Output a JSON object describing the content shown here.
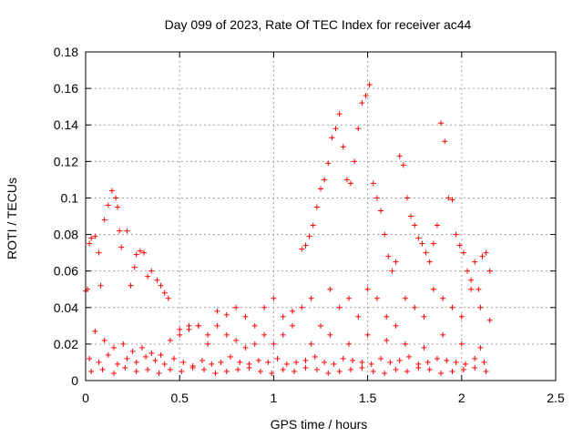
{
  "chart_data": {
    "type": "scatter",
    "title": "Day 099 of 2023, Rate Of TEC Index for receiver ac44",
    "xlabel": "GPS time / hours",
    "ylabel": "ROTI / TECUs",
    "xlim": [
      0,
      2.5
    ],
    "ylim": [
      0,
      0.18
    ],
    "xticks": [
      0,
      0.5,
      1,
      1.5,
      2,
      2.5
    ],
    "xtick_labels": [
      "0",
      "0.5",
      "1",
      "1.5",
      "2",
      "2.5"
    ],
    "yticks": [
      0,
      0.02,
      0.04,
      0.06,
      0.08,
      0.1,
      0.12,
      0.14,
      0.16,
      0.18
    ],
    "ytick_labels": [
      "0",
      "0.02",
      "0.04",
      "0.06",
      "0.08",
      "0.1",
      "0.12",
      "0.14",
      "0.16",
      "0.18"
    ],
    "grid": true,
    "marker": "+",
    "color": "#ff0000",
    "series": [
      {
        "x": [
          0.0,
          0.01,
          0.02,
          0.03,
          0.05,
          0.07,
          0.08,
          0.1,
          0.12,
          0.14,
          0.16,
          0.17,
          0.18,
          0.19,
          0.22,
          0.24,
          0.26,
          0.27,
          0.29,
          0.31,
          0.33,
          0.35,
          0.38,
          0.4,
          0.42,
          0.44,
          1.15,
          1.17,
          1.19,
          1.21,
          1.23,
          1.25,
          1.27,
          1.29,
          1.31,
          1.33,
          1.35,
          1.37,
          1.39,
          1.41,
          1.43,
          1.45,
          1.47,
          1.49,
          1.51,
          1.53,
          1.55,
          1.57,
          1.59,
          1.61,
          1.63,
          1.65,
          1.67,
          1.69,
          1.71,
          1.73,
          1.75,
          1.77,
          1.79,
          1.81,
          1.83,
          1.85,
          1.87,
          1.89,
          1.91,
          1.93,
          1.95,
          1.97,
          1.99,
          2.01,
          2.03,
          2.05,
          2.07,
          2.09,
          2.11,
          2.13,
          2.15,
          0.05,
          0.1,
          0.15,
          0.2,
          0.25,
          0.3,
          0.35,
          0.4,
          0.45,
          0.5,
          0.55,
          0.6,
          0.65,
          0.7,
          0.75,
          0.8,
          0.85,
          0.9,
          0.95,
          1.0,
          1.05,
          1.1,
          1.15,
          1.2,
          1.25,
          1.3,
          1.35,
          1.4,
          1.45,
          1.5,
          1.55,
          1.6,
          1.65,
          1.7,
          1.75,
          1.8,
          1.85,
          1.9,
          1.95,
          2.0,
          2.05,
          2.1,
          2.15,
          0.02,
          0.07,
          0.12,
          0.17,
          0.22,
          0.27,
          0.32,
          0.37,
          0.42,
          0.47,
          0.52,
          0.57,
          0.62,
          0.67,
          0.72,
          0.77,
          0.82,
          0.87,
          0.92,
          0.97,
          1.02,
          1.07,
          1.12,
          1.17,
          1.22,
          1.27,
          1.32,
          1.37,
          1.42,
          1.47,
          1.52,
          1.57,
          1.62,
          1.67,
          1.72,
          1.77,
          1.82,
          1.87,
          1.92,
          1.97,
          2.02,
          2.07,
          2.12,
          0.03,
          0.09,
          0.15,
          0.21,
          0.27,
          0.33,
          0.39,
          0.45,
          0.51,
          0.57,
          0.63,
          0.69,
          0.75,
          0.81,
          0.87,
          0.93,
          0.99,
          1.05,
          1.11,
          1.17,
          1.23,
          1.29,
          1.35,
          1.41,
          1.47,
          1.53,
          1.59,
          1.65,
          1.71,
          1.77,
          1.83,
          1.89,
          1.95,
          2.01,
          2.07,
          2.13,
          0.5,
          0.55,
          0.6,
          0.65,
          0.7,
          0.75,
          0.8,
          0.85,
          0.9,
          0.95,
          1.0,
          1.05,
          1.1,
          1.2,
          1.3,
          1.4,
          1.5,
          1.6,
          1.7,
          1.8,
          1.9,
          2.0,
          2.1
        ],
        "y": [
          0.049,
          0.05,
          0.075,
          0.078,
          0.079,
          0.07,
          0.052,
          0.088,
          0.096,
          0.104,
          0.1,
          0.095,
          0.082,
          0.073,
          0.082,
          0.052,
          0.062,
          0.069,
          0.071,
          0.07,
          0.057,
          0.06,
          0.055,
          0.052,
          0.048,
          0.045,
          0.072,
          0.074,
          0.079,
          0.085,
          0.095,
          0.105,
          0.11,
          0.119,
          0.133,
          0.138,
          0.146,
          0.128,
          0.11,
          0.108,
          0.12,
          0.138,
          0.152,
          0.156,
          0.162,
          0.108,
          0.1,
          0.093,
          0.08,
          0.068,
          0.06,
          0.065,
          0.123,
          0.118,
          0.1,
          0.09,
          0.085,
          0.078,
          0.075,
          0.07,
          0.065,
          0.075,
          0.085,
          0.141,
          0.131,
          0.1,
          0.099,
          0.08,
          0.074,
          0.07,
          0.06,
          0.055,
          0.065,
          0.05,
          0.068,
          0.07,
          0.06,
          0.027,
          0.022,
          0.018,
          0.02,
          0.016,
          0.018,
          0.015,
          0.014,
          0.022,
          0.028,
          0.03,
          0.03,
          0.025,
          0.038,
          0.036,
          0.04,
          0.035,
          0.03,
          0.04,
          0.045,
          0.035,
          0.038,
          0.04,
          0.045,
          0.03,
          0.05,
          0.04,
          0.045,
          0.035,
          0.05,
          0.045,
          0.035,
          0.03,
          0.045,
          0.04,
          0.035,
          0.05,
          0.045,
          0.04,
          0.035,
          0.05,
          0.04,
          0.033,
          0.012,
          0.01,
          0.014,
          0.009,
          0.012,
          0.01,
          0.013,
          0.011,
          0.009,
          0.012,
          0.01,
          0.008,
          0.011,
          0.009,
          0.01,
          0.013,
          0.01,
          0.009,
          0.011,
          0.01,
          0.012,
          0.009,
          0.01,
          0.011,
          0.013,
          0.01,
          0.009,
          0.012,
          0.011,
          0.01,
          0.009,
          0.012,
          0.01,
          0.011,
          0.013,
          0.009,
          0.01,
          0.012,
          0.011,
          0.01,
          0.009,
          0.012,
          0.01,
          0.005,
          0.006,
          0.004,
          0.007,
          0.005,
          0.006,
          0.004,
          0.006,
          0.005,
          0.007,
          0.006,
          0.004,
          0.005,
          0.006,
          0.007,
          0.005,
          0.004,
          0.006,
          0.005,
          0.007,
          0.006,
          0.004,
          0.005,
          0.006,
          0.007,
          0.005,
          0.004,
          0.006,
          0.005,
          0.007,
          0.006,
          0.004,
          0.005,
          0.006,
          0.007,
          0.005,
          0.025,
          0.028,
          0.03,
          0.02,
          0.03,
          0.025,
          0.022,
          0.018,
          0.02,
          0.025,
          0.02,
          0.025,
          0.03,
          0.02,
          0.025,
          0.02,
          0.025,
          0.022,
          0.02,
          0.018,
          0.025,
          0.02,
          0.018
        ]
      }
    ]
  }
}
